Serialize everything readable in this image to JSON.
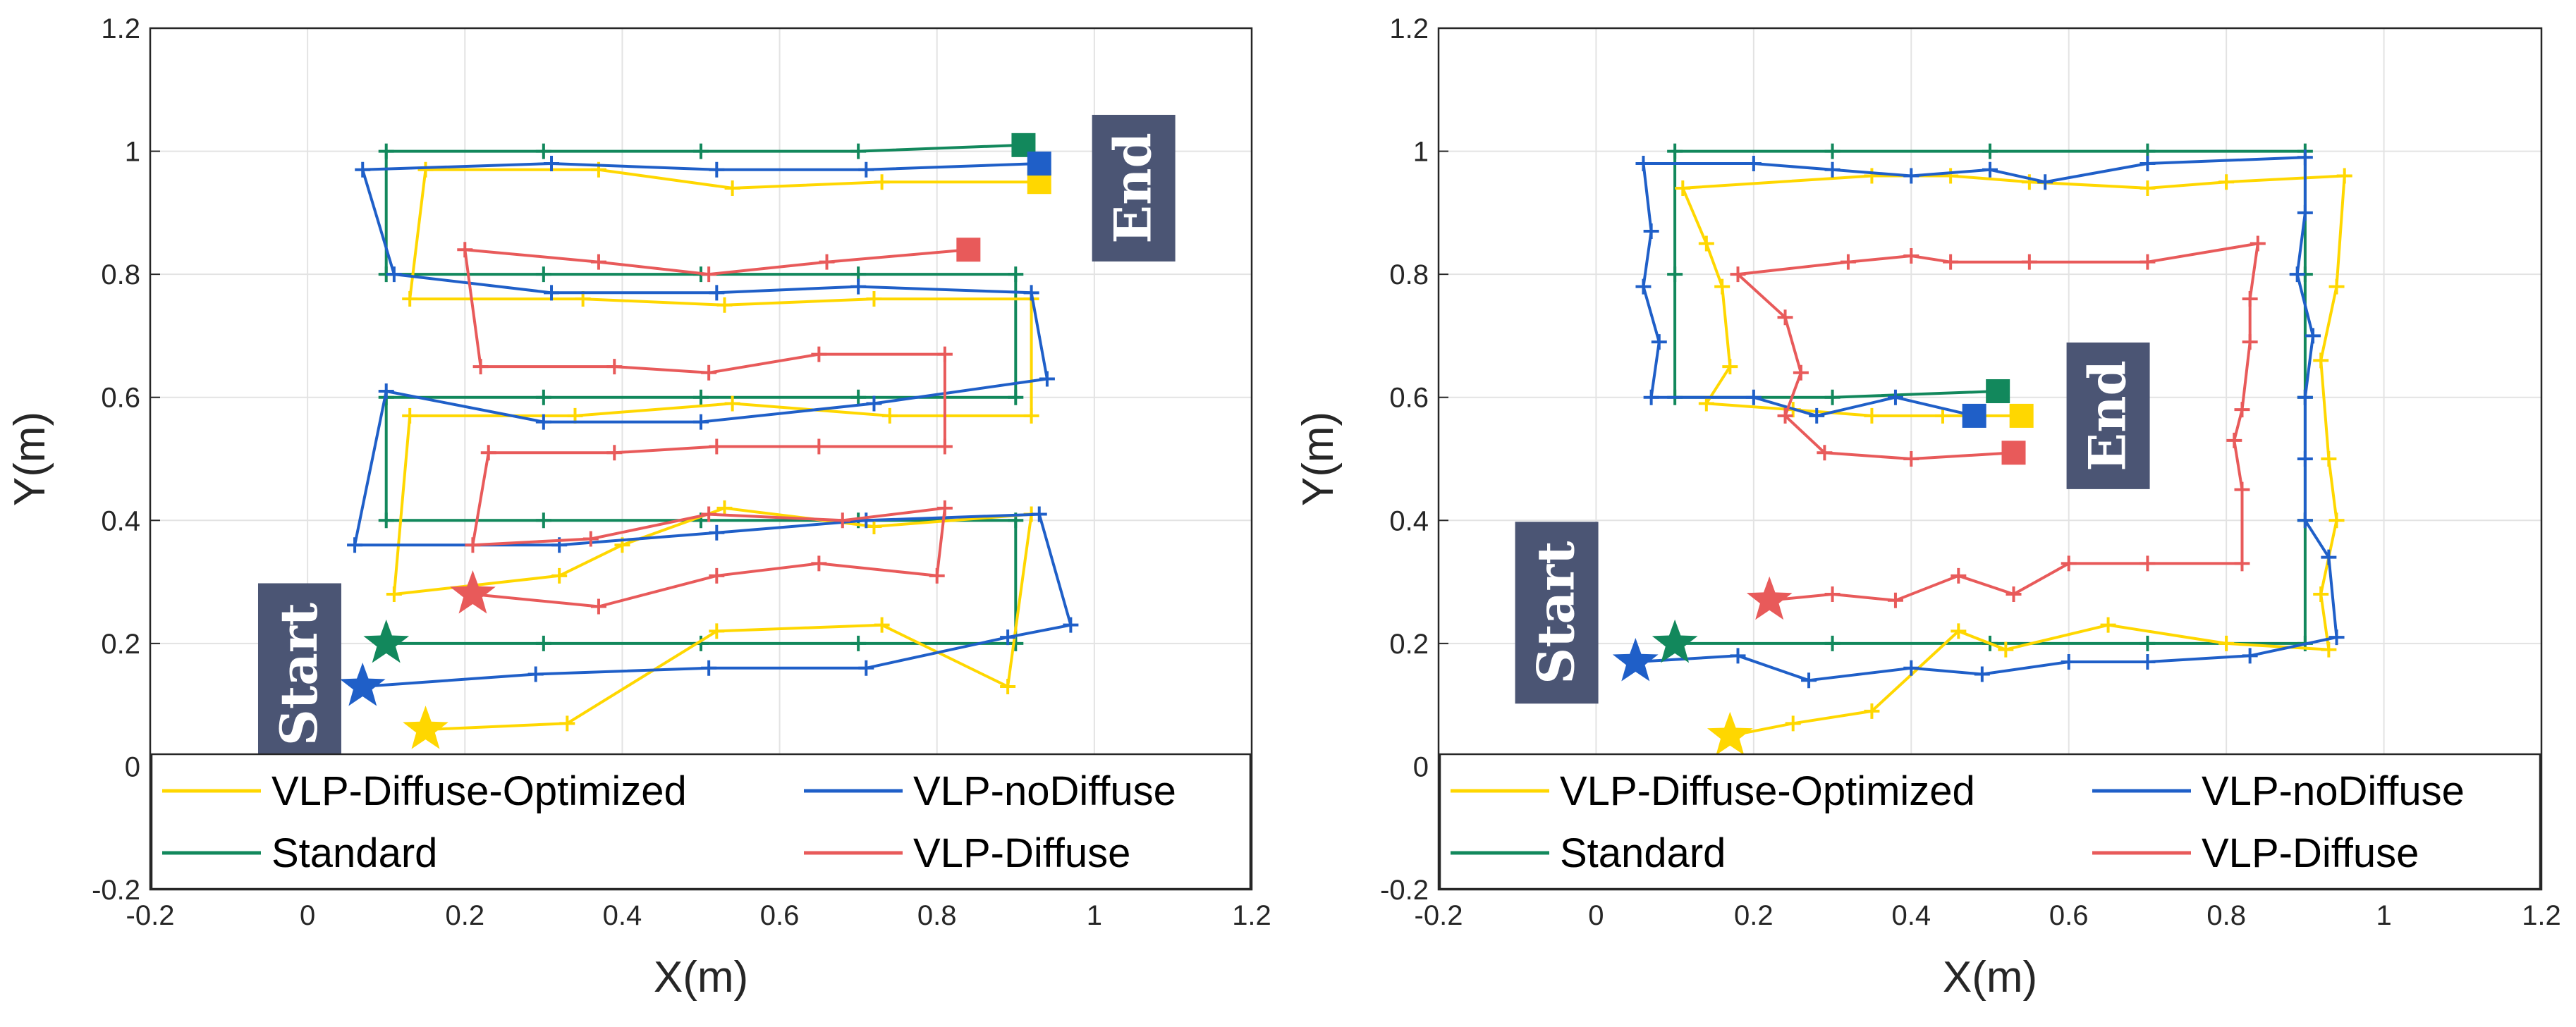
{
  "chart_data": [
    {
      "type": "line",
      "xlabel": "X(m)",
      "ylabel": "Y(m)",
      "xlim": [
        -0.2,
        1.2
      ],
      "ylim": [
        -0.2,
        1.2
      ],
      "xticks": [
        "-0.2",
        "0",
        "0.2",
        "0.4",
        "0.6",
        "0.8",
        "1",
        "1.2"
      ],
      "yticks": [
        "-0.2",
        "0",
        "0.2",
        "0.4",
        "0.6",
        "0.8",
        "1",
        "1.2"
      ],
      "grid": true,
      "legend_position": "bottom",
      "annotations": [
        {
          "text": "Start",
          "x": -0.01,
          "y": 0.15
        },
        {
          "text": "End",
          "x": 1.05,
          "y": 0.94
        }
      ],
      "series": [
        {
          "name": "VLP-Diffuse-Optimized",
          "color": "#FFD700",
          "start": [
            0.15,
            0.06
          ],
          "end": [
            0.93,
            0.95
          ],
          "points": [
            [
              0.15,
              0.06
            ],
            [
              0.33,
              0.07
            ],
            [
              0.52,
              0.22
            ],
            [
              0.73,
              0.23
            ],
            [
              0.89,
              0.13
            ],
            [
              0.92,
              0.41
            ],
            [
              0.72,
              0.39
            ],
            [
              0.53,
              0.42
            ],
            [
              0.4,
              0.36
            ],
            [
              0.32,
              0.31
            ],
            [
              0.11,
              0.28
            ],
            [
              0.13,
              0.57
            ],
            [
              0.34,
              0.57
            ],
            [
              0.54,
              0.59
            ],
            [
              0.74,
              0.57
            ],
            [
              0.92,
              0.57
            ],
            [
              0.92,
              0.76
            ],
            [
              0.72,
              0.76
            ],
            [
              0.53,
              0.75
            ],
            [
              0.35,
              0.76
            ],
            [
              0.13,
              0.76
            ],
            [
              0.15,
              0.97
            ],
            [
              0.37,
              0.97
            ],
            [
              0.54,
              0.94
            ],
            [
              0.73,
              0.95
            ],
            [
              0.93,
              0.95
            ]
          ]
        },
        {
          "name": "VLP-noDiffuse",
          "color": "#1F5FC8",
          "start": [
            0.07,
            0.13
          ],
          "end": [
            0.93,
            0.98
          ],
          "points": [
            [
              0.07,
              0.13
            ],
            [
              0.29,
              0.15
            ],
            [
              0.51,
              0.16
            ],
            [
              0.71,
              0.16
            ],
            [
              0.89,
              0.21
            ],
            [
              0.97,
              0.23
            ],
            [
              0.93,
              0.41
            ],
            [
              0.71,
              0.4
            ],
            [
              0.52,
              0.38
            ],
            [
              0.32,
              0.36
            ],
            [
              0.06,
              0.36
            ],
            [
              0.1,
              0.61
            ],
            [
              0.3,
              0.56
            ],
            [
              0.5,
              0.56
            ],
            [
              0.72,
              0.59
            ],
            [
              0.94,
              0.63
            ],
            [
              0.92,
              0.77
            ],
            [
              0.7,
              0.78
            ],
            [
              0.52,
              0.77
            ],
            [
              0.31,
              0.77
            ],
            [
              0.11,
              0.8
            ],
            [
              0.07,
              0.97
            ],
            [
              0.31,
              0.98
            ],
            [
              0.52,
              0.97
            ],
            [
              0.71,
              0.97
            ],
            [
              0.93,
              0.98
            ]
          ]
        },
        {
          "name": "Standard",
          "color": "#12885C",
          "start": [
            0.1,
            0.2
          ],
          "end": [
            0.91,
            1.01
          ],
          "points": [
            [
              0.1,
              0.2
            ],
            [
              0.3,
              0.2
            ],
            [
              0.5,
              0.2
            ],
            [
              0.7,
              0.2
            ],
            [
              0.9,
              0.2
            ],
            [
              0.9,
              0.4
            ],
            [
              0.7,
              0.4
            ],
            [
              0.5,
              0.4
            ],
            [
              0.3,
              0.4
            ],
            [
              0.1,
              0.4
            ],
            [
              0.1,
              0.6
            ],
            [
              0.3,
              0.6
            ],
            [
              0.5,
              0.6
            ],
            [
              0.7,
              0.6
            ],
            [
              0.9,
              0.6
            ],
            [
              0.9,
              0.8
            ],
            [
              0.7,
              0.8
            ],
            [
              0.5,
              0.8
            ],
            [
              0.3,
              0.8
            ],
            [
              0.1,
              0.8
            ],
            [
              0.1,
              1.0
            ],
            [
              0.3,
              1.0
            ],
            [
              0.5,
              1.0
            ],
            [
              0.7,
              1.0
            ],
            [
              0.91,
              1.01
            ]
          ]
        },
        {
          "name": "VLP-Diffuse",
          "color": "#E85A5A",
          "start": [
            0.21,
            0.28
          ],
          "end": [
            0.84,
            0.84
          ],
          "points": [
            [
              0.21,
              0.28
            ],
            [
              0.37,
              0.26
            ],
            [
              0.52,
              0.31
            ],
            [
              0.65,
              0.33
            ],
            [
              0.8,
              0.31
            ],
            [
              0.81,
              0.42
            ],
            [
              0.68,
              0.4
            ],
            [
              0.51,
              0.41
            ],
            [
              0.36,
              0.37
            ],
            [
              0.21,
              0.36
            ],
            [
              0.23,
              0.51
            ],
            [
              0.39,
              0.51
            ],
            [
              0.52,
              0.52
            ],
            [
              0.65,
              0.52
            ],
            [
              0.81,
              0.52
            ],
            [
              0.81,
              0.67
            ],
            [
              0.65,
              0.67
            ],
            [
              0.51,
              0.64
            ],
            [
              0.39,
              0.65
            ],
            [
              0.22,
              0.65
            ],
            [
              0.2,
              0.84
            ],
            [
              0.37,
              0.82
            ],
            [
              0.51,
              0.8
            ],
            [
              0.66,
              0.82
            ],
            [
              0.84,
              0.84
            ]
          ]
        }
      ]
    },
    {
      "type": "line",
      "xlabel": "X(m)",
      "ylabel": "Y(m)",
      "xlim": [
        -0.2,
        1.2
      ],
      "ylim": [
        -0.2,
        1.2
      ],
      "xticks": [
        "-0.2",
        "0",
        "0.2",
        "0.4",
        "0.6",
        "0.8",
        "1",
        "1.2"
      ],
      "yticks": [
        "-0.2",
        "0",
        "0.2",
        "0.4",
        "0.6",
        "0.8",
        "1",
        "1.2"
      ],
      "grid": true,
      "legend_position": "bottom",
      "annotations": [
        {
          "text": "Start",
          "x": -0.05,
          "y": 0.25
        },
        {
          "text": "End",
          "x": 0.65,
          "y": 0.57
        }
      ],
      "series": [
        {
          "name": "VLP-Diffuse-Optimized",
          "color": "#FFD700",
          "start": [
            0.17,
            0.05
          ],
          "end": [
            0.54,
            0.57
          ],
          "points": [
            [
              0.17,
              0.05
            ],
            [
              0.25,
              0.07
            ],
            [
              0.35,
              0.09
            ],
            [
              0.46,
              0.22
            ],
            [
              0.52,
              0.19
            ],
            [
              0.65,
              0.23
            ],
            [
              0.8,
              0.2
            ],
            [
              0.93,
              0.19
            ],
            [
              0.92,
              0.28
            ],
            [
              0.94,
              0.4
            ],
            [
              0.93,
              0.5
            ],
            [
              0.92,
              0.66
            ],
            [
              0.94,
              0.78
            ],
            [
              0.95,
              0.96
            ],
            [
              0.8,
              0.95
            ],
            [
              0.7,
              0.94
            ],
            [
              0.55,
              0.95
            ],
            [
              0.45,
              0.96
            ],
            [
              0.35,
              0.96
            ],
            [
              0.11,
              0.94
            ],
            [
              0.14,
              0.85
            ],
            [
              0.16,
              0.78
            ],
            [
              0.17,
              0.65
            ],
            [
              0.14,
              0.59
            ],
            [
              0.25,
              0.58
            ],
            [
              0.35,
              0.57
            ],
            [
              0.44,
              0.57
            ],
            [
              0.54,
              0.57
            ]
          ]
        },
        {
          "name": "VLP-noDiffuse",
          "color": "#1F5FC8",
          "start": [
            0.05,
            0.17
          ],
          "end": [
            0.48,
            0.57
          ],
          "points": [
            [
              0.05,
              0.17
            ],
            [
              0.18,
              0.18
            ],
            [
              0.27,
              0.14
            ],
            [
              0.4,
              0.16
            ],
            [
              0.49,
              0.15
            ],
            [
              0.6,
              0.17
            ],
            [
              0.7,
              0.17
            ],
            [
              0.83,
              0.18
            ],
            [
              0.94,
              0.21
            ],
            [
              0.93,
              0.34
            ],
            [
              0.9,
              0.4
            ],
            [
              0.9,
              0.5
            ],
            [
              0.9,
              0.6
            ],
            [
              0.91,
              0.7
            ],
            [
              0.89,
              0.8
            ],
            [
              0.9,
              0.9
            ],
            [
              0.9,
              0.99
            ],
            [
              0.7,
              0.98
            ],
            [
              0.57,
              0.95
            ],
            [
              0.5,
              0.97
            ],
            [
              0.4,
              0.96
            ],
            [
              0.3,
              0.97
            ],
            [
              0.2,
              0.98
            ],
            [
              0.06,
              0.98
            ],
            [
              0.07,
              0.87
            ],
            [
              0.06,
              0.78
            ],
            [
              0.08,
              0.69
            ],
            [
              0.07,
              0.6
            ],
            [
              0.2,
              0.6
            ],
            [
              0.28,
              0.57
            ],
            [
              0.38,
              0.6
            ],
            [
              0.48,
              0.57
            ]
          ]
        },
        {
          "name": "Standard",
          "color": "#12885C",
          "start": [
            0.1,
            0.2
          ],
          "end": [
            0.51,
            0.61
          ],
          "points": [
            [
              0.1,
              0.2
            ],
            [
              0.3,
              0.2
            ],
            [
              0.5,
              0.2
            ],
            [
              0.7,
              0.2
            ],
            [
              0.9,
              0.2
            ],
            [
              0.9,
              0.4
            ],
            [
              0.9,
              0.6
            ],
            [
              0.9,
              0.8
            ],
            [
              0.9,
              1.0
            ],
            [
              0.7,
              1.0
            ],
            [
              0.5,
              1.0
            ],
            [
              0.3,
              1.0
            ],
            [
              0.1,
              1.0
            ],
            [
              0.1,
              0.8
            ],
            [
              0.1,
              0.6
            ],
            [
              0.3,
              0.6
            ],
            [
              0.51,
              0.61
            ]
          ]
        },
        {
          "name": "VLP-Diffuse",
          "color": "#E85A5A",
          "start": [
            0.22,
            0.27
          ],
          "end": [
            0.53,
            0.51
          ],
          "points": [
            [
              0.22,
              0.27
            ],
            [
              0.3,
              0.28
            ],
            [
              0.38,
              0.27
            ],
            [
              0.46,
              0.31
            ],
            [
              0.53,
              0.28
            ],
            [
              0.6,
              0.33
            ],
            [
              0.7,
              0.33
            ],
            [
              0.82,
              0.33
            ],
            [
              0.82,
              0.45
            ],
            [
              0.81,
              0.53
            ],
            [
              0.82,
              0.58
            ],
            [
              0.83,
              0.69
            ],
            [
              0.83,
              0.76
            ],
            [
              0.84,
              0.85
            ],
            [
              0.7,
              0.82
            ],
            [
              0.55,
              0.82
            ],
            [
              0.45,
              0.82
            ],
            [
              0.4,
              0.83
            ],
            [
              0.32,
              0.82
            ],
            [
              0.18,
              0.8
            ],
            [
              0.24,
              0.73
            ],
            [
              0.26,
              0.64
            ],
            [
              0.24,
              0.57
            ],
            [
              0.29,
              0.51
            ],
            [
              0.4,
              0.5
            ],
            [
              0.53,
              0.51
            ]
          ]
        }
      ]
    }
  ]
}
